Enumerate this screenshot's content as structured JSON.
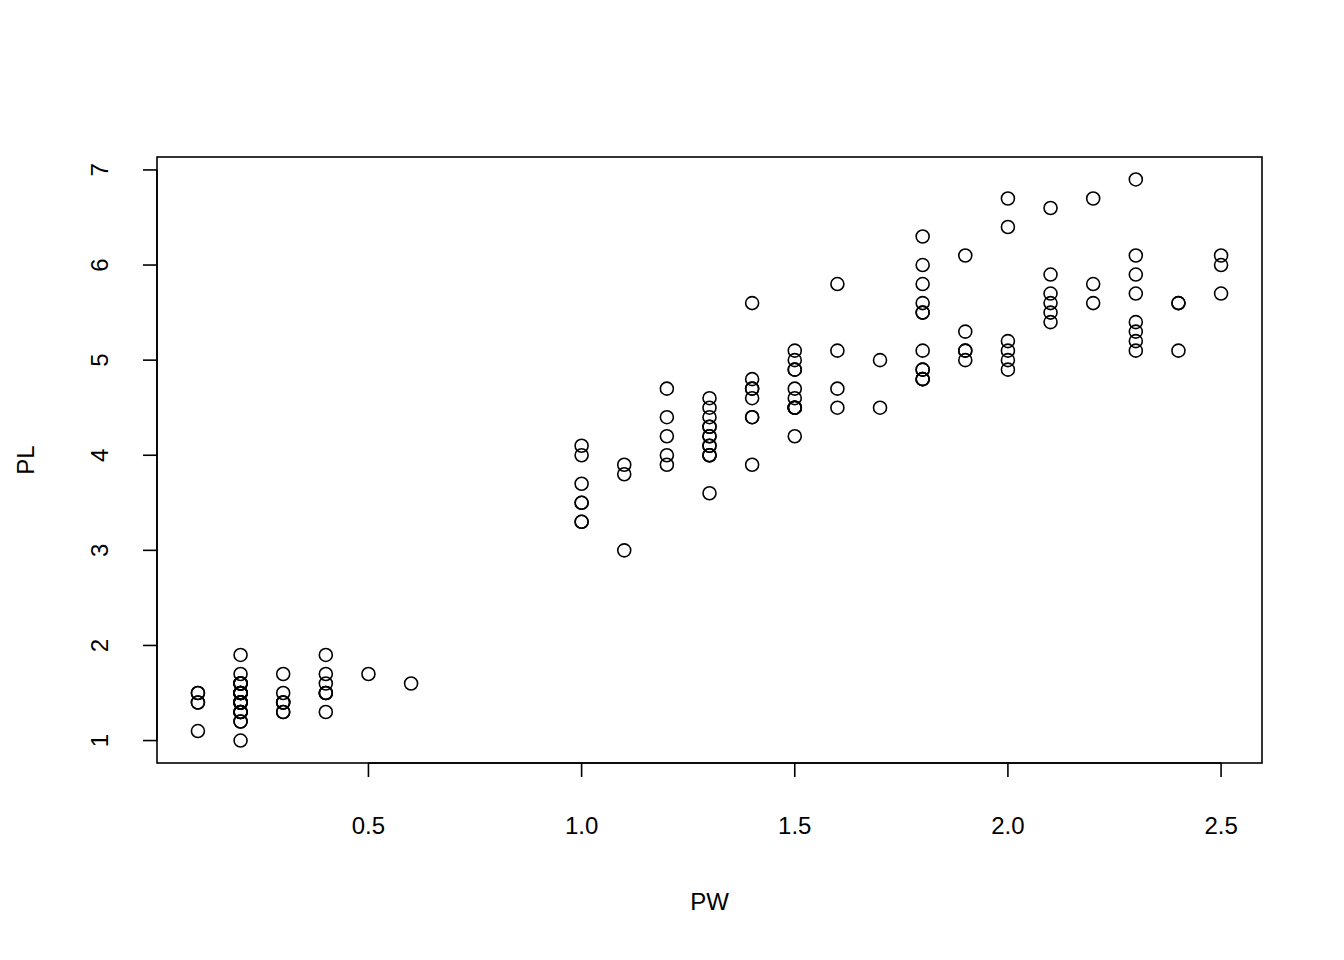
{
  "chart_data": {
    "type": "scatter",
    "x_label": "PW",
    "y_label": "PL",
    "marker": "circle",
    "color": "#000000",
    "xlim": [
      0.004,
      2.596
    ],
    "ylim": [
      0.764,
      7.136
    ],
    "xticks": [
      0.5,
      {
        "value": 1,
        "label": "1.0"
      },
      1.5,
      {
        "value": 2,
        "label": "2.0"
      },
      2.5
    ],
    "yticks": [
      1,
      2,
      3,
      4,
      5,
      6,
      7
    ],
    "grid": false,
    "x": [
      0.2,
      0.2,
      0.2,
      0.2,
      0.2,
      0.4,
      0.3,
      0.2,
      0.2,
      0.1,
      0.2,
      0.2,
      0.1,
      0.1,
      0.2,
      0.4,
      0.4,
      0.3,
      0.3,
      0.3,
      0.2,
      0.4,
      0.2,
      0.5,
      0.2,
      0.2,
      0.4,
      0.2,
      0.2,
      0.2,
      0.2,
      0.4,
      0.1,
      0.2,
      0.2,
      0.2,
      0.2,
      0.1,
      0.2,
      0.2,
      0.3,
      0.3,
      0.2,
      0.6,
      0.4,
      0.3,
      0.2,
      0.2,
      0.2,
      0.2,
      1.4,
      1.5,
      1.5,
      1.3,
      1.5,
      1.3,
      1.6,
      1.0,
      1.3,
      1.4,
      1.0,
      1.5,
      1.0,
      1.4,
      1.3,
      1.4,
      1.5,
      1.0,
      1.5,
      1.1,
      1.8,
      1.3,
      1.5,
      1.2,
      1.3,
      1.4,
      1.4,
      1.7,
      1.5,
      1.0,
      1.1,
      1.0,
      1.2,
      1.6,
      1.5,
      1.6,
      1.5,
      1.3,
      1.3,
      1.3,
      1.2,
      1.4,
      1.2,
      1.0,
      1.3,
      1.2,
      1.3,
      1.3,
      1.1,
      1.3,
      2.5,
      1.9,
      2.1,
      1.8,
      2.2,
      2.1,
      1.7,
      1.8,
      1.8,
      2.5,
      2.0,
      1.9,
      2.1,
      2.0,
      2.4,
      2.3,
      1.8,
      2.2,
      2.3,
      1.5,
      2.3,
      2.0,
      2.0,
      1.8,
      2.1,
      1.8,
      1.8,
      1.8,
      2.1,
      1.6,
      1.9,
      2.0,
      2.2,
      1.5,
      1.4,
      2.3,
      2.4,
      1.8,
      1.8,
      2.1,
      2.4,
      2.3,
      1.9,
      2.3,
      2.5,
      2.3,
      1.9,
      2.0,
      2.3,
      1.8
    ],
    "values": [
      1.4,
      1.4,
      1.3,
      1.5,
      1.4,
      1.7,
      1.4,
      1.5,
      1.4,
      1.5,
      1.5,
      1.6,
      1.4,
      1.1,
      1.2,
      1.5,
      1.3,
      1.4,
      1.7,
      1.5,
      1.7,
      1.5,
      1.0,
      1.7,
      1.9,
      1.6,
      1.6,
      1.5,
      1.4,
      1.6,
      1.6,
      1.5,
      1.5,
      1.4,
      1.5,
      1.2,
      1.3,
      1.4,
      1.3,
      1.5,
      1.3,
      1.3,
      1.3,
      1.6,
      1.9,
      1.4,
      1.6,
      1.4,
      1.5,
      1.4,
      4.7,
      4.5,
      4.9,
      4.0,
      4.6,
      4.5,
      4.7,
      3.3,
      4.6,
      3.9,
      3.5,
      4.2,
      4.0,
      4.7,
      3.6,
      4.4,
      4.5,
      4.1,
      4.5,
      3.9,
      4.8,
      4.0,
      4.9,
      4.7,
      4.3,
      4.4,
      4.8,
      5.0,
      4.5,
      3.5,
      3.8,
      3.7,
      3.9,
      5.1,
      4.5,
      4.5,
      4.7,
      4.4,
      4.1,
      4.0,
      4.4,
      4.6,
      4.0,
      3.3,
      4.2,
      4.2,
      4.2,
      4.3,
      3.0,
      4.1,
      6.0,
      5.1,
      5.9,
      5.6,
      5.8,
      6.6,
      4.5,
      6.3,
      5.8,
      6.1,
      5.1,
      5.3,
      5.5,
      5.0,
      5.1,
      5.3,
      5.5,
      6.7,
      6.9,
      5.0,
      5.7,
      4.9,
      6.7,
      4.9,
      5.7,
      6.0,
      4.8,
      4.9,
      5.6,
      5.8,
      6.1,
      6.4,
      5.6,
      5.1,
      5.6,
      6.1,
      5.6,
      5.5,
      4.8,
      5.4,
      5.6,
      5.1,
      5.1,
      5.9,
      5.7,
      5.2,
      5.0,
      5.2,
      5.4,
      5.1
    ]
  }
}
